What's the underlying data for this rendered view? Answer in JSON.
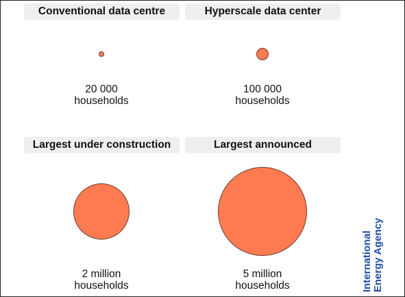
{
  "chart_data": {
    "type": "bubble",
    "unit": "households",
    "categories": [
      "Conventional data centre",
      "Hyperscale data center",
      "Largest under construction",
      "Largest announced"
    ],
    "values": [
      20000,
      100000,
      2000000,
      5000000
    ],
    "items": [
      {
        "label": "Conventional data centre",
        "value": 20000,
        "value_line1": "20 000",
        "value_line2": "households"
      },
      {
        "label": "Hyperscale data center",
        "value": 100000,
        "value_line1": "100 000",
        "value_line2": "households"
      },
      {
        "label": "Largest under construction",
        "value": 2000000,
        "value_line1": "2 million",
        "value_line2": "households"
      },
      {
        "label": "Largest announced",
        "value": 5000000,
        "value_line1": "5 million",
        "value_line2": "households"
      }
    ]
  },
  "colors": {
    "bubble_fill": "#fe7b52",
    "bubble_stroke": "#6b3a2a",
    "label_background": "#efeff0",
    "logo": "#1f4ea8"
  },
  "logo": {
    "line1": "International",
    "line2": "Energy Agency"
  }
}
